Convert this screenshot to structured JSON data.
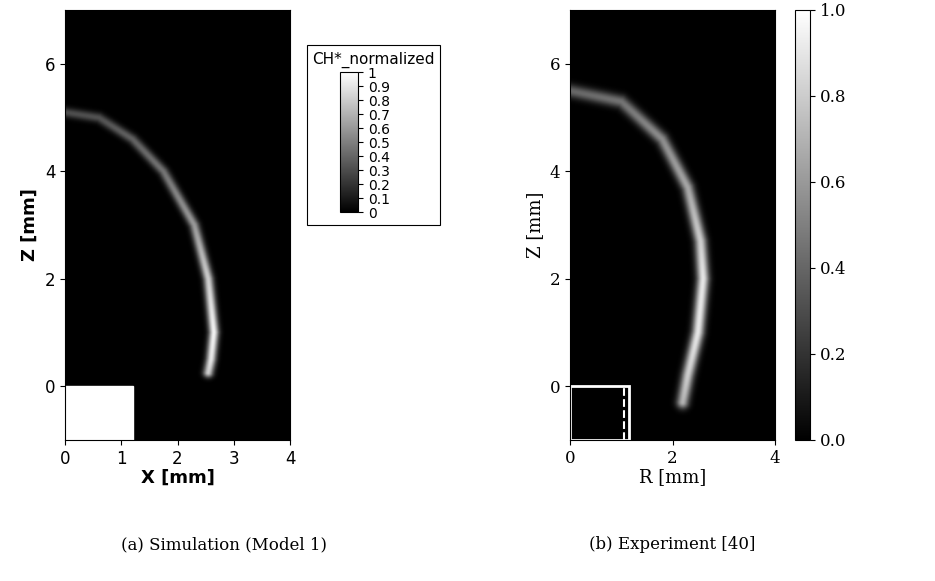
{
  "chart_data": [
    {
      "type": "image",
      "caption": "(a) Simulation (Model 1)",
      "xlabel": "X [mm]",
      "ylabel": "Z [mm]",
      "xlim": [
        0,
        4
      ],
      "ylim": [
        -1,
        7
      ],
      "xticks": [
        0,
        1,
        2,
        3,
        4
      ],
      "yticks": [
        0,
        2,
        4,
        6
      ],
      "arc": {
        "points": [
          [
            0,
            5.1
          ],
          [
            0.6,
            5.0
          ],
          [
            1.2,
            4.6
          ],
          [
            1.75,
            4.0
          ],
          [
            2.3,
            3.0
          ],
          [
            2.55,
            2.0
          ],
          [
            2.65,
            1.0
          ],
          [
            2.6,
            0.5
          ],
          [
            2.55,
            0.25
          ]
        ],
        "intensity": [
          0.3,
          0.32,
          0.38,
          0.45,
          0.6,
          0.8,
          0.95,
          0.9,
          0.8
        ]
      },
      "nozzle": {
        "x": [
          0,
          1.2
        ],
        "z": [
          -1,
          0
        ]
      },
      "colorbar": {
        "title": "CH*_normalized",
        "range": [
          0,
          1
        ],
        "ticks": [
          0,
          0.1,
          0.2,
          0.3,
          0.4,
          0.5,
          0.6,
          0.7,
          0.8,
          0.9,
          1
        ]
      }
    },
    {
      "type": "image",
      "caption": "(b) Experiment [40]",
      "xlabel": "R [mm]",
      "ylabel": "Z [mm]",
      "xlim": [
        0,
        4
      ],
      "ylim": [
        -1,
        7
      ],
      "xticks": [
        0,
        2,
        4
      ],
      "yticks": [
        0,
        2,
        4,
        6
      ],
      "arc": {
        "points": [
          [
            0,
            5.5
          ],
          [
            1.0,
            5.3
          ],
          [
            1.8,
            4.6
          ],
          [
            2.3,
            3.7
          ],
          [
            2.55,
            2.7
          ],
          [
            2.6,
            2.0
          ],
          [
            2.5,
            1.0
          ],
          [
            2.3,
            0.2
          ],
          [
            2.2,
            -0.3
          ]
        ],
        "intensity": [
          0.4,
          0.45,
          0.55,
          0.65,
          0.8,
          0.9,
          0.9,
          0.8,
          0.7
        ]
      },
      "nozzle": {
        "x": [
          0,
          1.15
        ],
        "z": [
          -1,
          0
        ],
        "inner_x": 1.05
      },
      "colorbar": {
        "range": [
          0,
          1
        ],
        "ticks": [
          {
            "value": 0,
            "label": "0.0"
          },
          {
            "value": 0.2,
            "label": "0.2"
          },
          {
            "value": 0.4,
            "label": "0.4"
          },
          {
            "value": 0.6,
            "label": "0.6"
          },
          {
            "value": 0.8,
            "label": "0.8"
          },
          {
            "value": 1,
            "label": "1.0"
          }
        ]
      }
    }
  ]
}
